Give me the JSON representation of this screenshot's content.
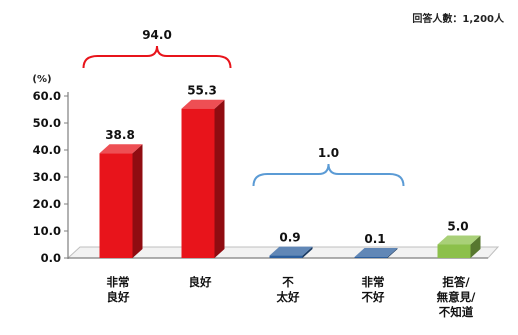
{
  "respondents_note": "回答人數：1,200人",
  "chart_data": {
    "type": "bar",
    "unit_label": "(%)",
    "categories": [
      [
        "非常",
        "良好"
      ],
      [
        "良好"
      ],
      [
        "不",
        "太好"
      ],
      [
        "非常",
        "不好"
      ],
      [
        "拒答/",
        "無意見/",
        "不知道"
      ]
    ],
    "values": [
      38.8,
      55.3,
      0.9,
      0.1,
      5.0
    ],
    "value_labels": [
      "38.8",
      "55.3",
      "0.9",
      "0.1",
      "5.0"
    ],
    "bar_colors": [
      "#e8141b",
      "#e8141b",
      "#2c5f9e",
      "#2c5f9e",
      "#8cc04b"
    ],
    "yticks": [
      "0.0",
      "10.0",
      "20.0",
      "30.0",
      "40.0",
      "50.0",
      "60.0"
    ],
    "ylim": [
      0,
      60
    ],
    "brackets": [
      {
        "label": "94.0",
        "from": 0,
        "to": 1,
        "color": "#e8141b"
      },
      {
        "label": "1.0",
        "from": 2,
        "to": 3,
        "color": "#5b9bd5"
      }
    ]
  }
}
